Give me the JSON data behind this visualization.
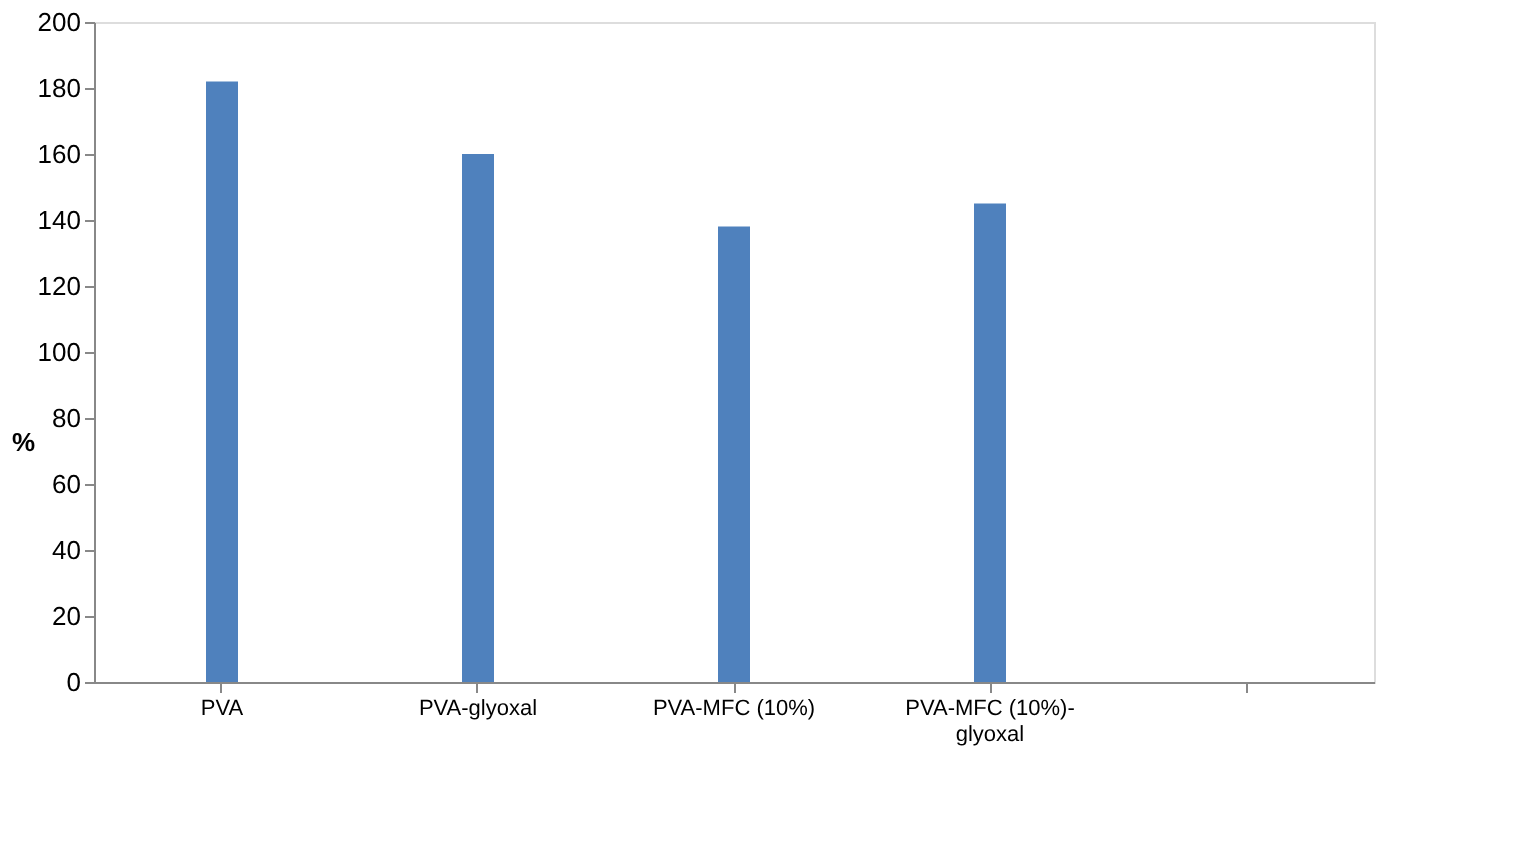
{
  "chart_data": {
    "type": "bar",
    "ylabel": "%",
    "categories": [
      "PVA",
      "PVA-glyoxal",
      "PVA-MFC (10%)",
      "PVA-MFC (10%)-\nglyoxal",
      null
    ],
    "values": [
      182,
      160,
      138,
      145,
      null
    ],
    "color": "#4f81bd",
    "ylim": [
      0,
      200
    ],
    "yticks": [
      0,
      20,
      40,
      60,
      80,
      100,
      120,
      140,
      160,
      180,
      200
    ],
    "grid": false
  }
}
